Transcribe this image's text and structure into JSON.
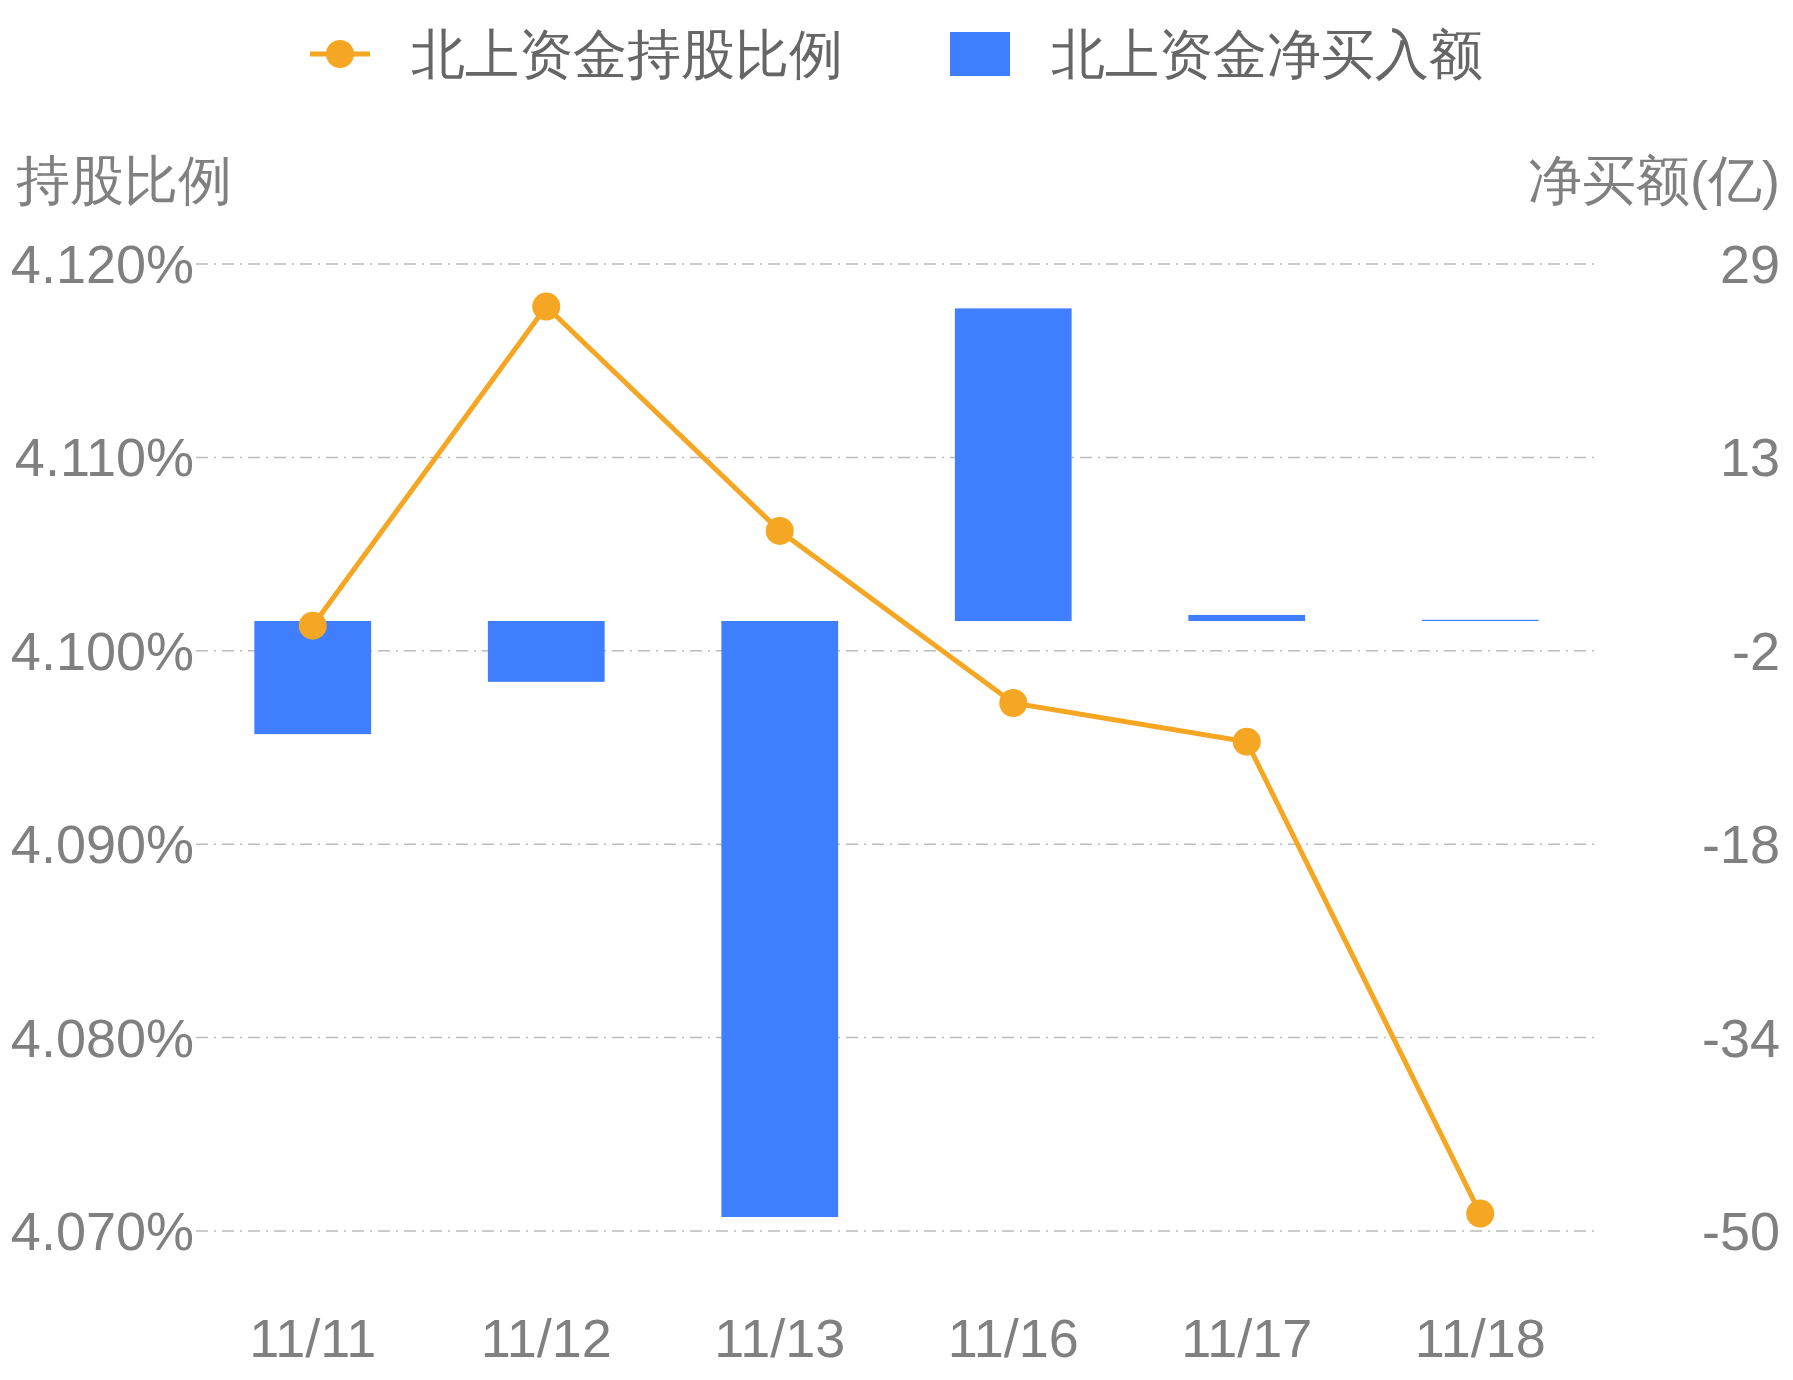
{
  "chart_data": {
    "type": "bar",
    "categories": [
      "11/11",
      "11/12",
      "11/13",
      "11/16",
      "11/17",
      "11/18"
    ],
    "series": [
      {
        "name": "北上资金持股比例",
        "type": "line",
        "color": "#f5a623",
        "marker": "circle",
        "values": [
          4.1013,
          4.1178,
          4.1062,
          4.0973,
          4.0953,
          4.0709
        ]
      },
      {
        "name": "北上资金净买入额",
        "axis": "y2",
        "color": "#3e7eff",
        "values": [
          -9.3,
          -5.0,
          -49.0,
          25.7,
          0.5,
          0.1
        ]
      }
    ],
    "ylabel": "持股比例",
    "y2label": "净买额(亿)",
    "ylim": [
      4.07,
      4.12
    ],
    "yticks": [
      {
        "value": 4.07,
        "label": "4.070%"
      },
      {
        "value": 4.08,
        "label": "4.080%"
      },
      {
        "value": 4.09,
        "label": "4.090%"
      },
      {
        "value": 4.1,
        "label": "4.100%"
      },
      {
        "value": 4.11,
        "label": "4.110%"
      },
      {
        "value": 4.12,
        "label": "4.120%"
      }
    ],
    "y2lim": [
      -50.15,
      29.35
    ],
    "y2ticks": [
      {
        "value": -50.15,
        "label": "-50"
      },
      {
        "value": -34.25,
        "label": "-34"
      },
      {
        "value": -18.35,
        "label": "-18"
      },
      {
        "value": -2.45,
        "label": "-2"
      },
      {
        "value": 13.45,
        "label": "13"
      },
      {
        "value": 29.35,
        "label": "29"
      }
    ],
    "grid": "y",
    "legend": "top"
  }
}
